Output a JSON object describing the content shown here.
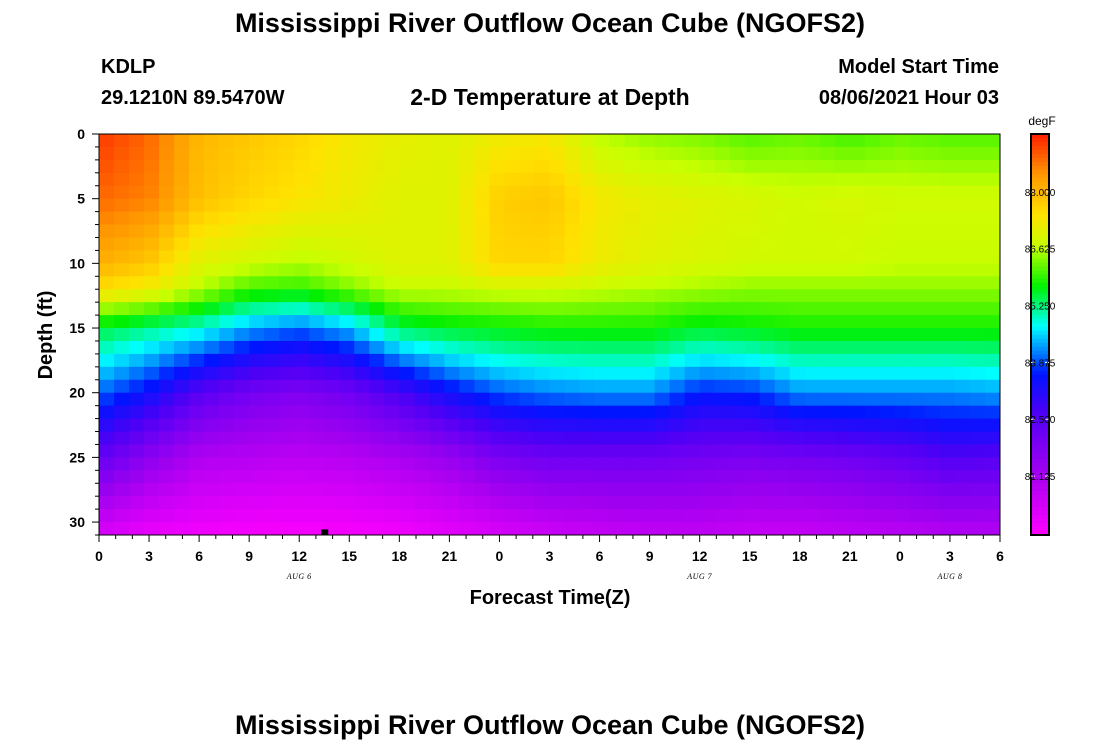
{
  "page": {
    "title_top": "Mississippi River Outflow Ocean Cube (NGOFS2)",
    "title_bottom": "Mississippi River Outflow Ocean Cube (NGOFS2)",
    "station_id": "KDLP",
    "station_coords": "29.1210N  89.5470W",
    "subtitle": "2-D Temperature at Depth",
    "model_start_label": "Model Start Time",
    "model_start_value": "08/06/2021 Hour 03"
  },
  "chart_data": {
    "type": "heatmap",
    "title": "2-D Temperature at Depth",
    "xlabel": "Forecast Time(Z)",
    "ylabel": "Depth (ft)",
    "x_range_hours": [
      0,
      54
    ],
    "y_range_ft": [
      0,
      31
    ],
    "x_tick_labels": [
      "0",
      "3",
      "6",
      "9",
      "12",
      "15",
      "18",
      "21",
      "0",
      "3",
      "6",
      "9",
      "12",
      "15",
      "18",
      "21",
      "0",
      "3",
      "6"
    ],
    "y_ticks": [
      0,
      5,
      10,
      15,
      20,
      25,
      30
    ],
    "date_labels": [
      {
        "label": "AUG 6",
        "hour": 12
      },
      {
        "label": "AUG 7",
        "hour": 36
      },
      {
        "label": "AUG 8",
        "hour": 51
      }
    ],
    "colorbar": {
      "units": "degF",
      "range": [
        79.7,
        89.4
      ],
      "tick_values": [
        88.0,
        86.625,
        85.25,
        83.875,
        82.5,
        81.125
      ],
      "tick_labels": [
        "88.000",
        "86.625",
        "85.250",
        "83.875",
        "82.500",
        "81.125"
      ]
    },
    "marker": {
      "hour": 13.5,
      "depth_ft": 30.8
    },
    "hours": [
      0,
      3,
      6,
      9,
      12,
      15,
      18,
      21,
      24,
      27,
      30,
      33,
      36,
      39,
      42,
      45,
      48,
      51,
      54
    ],
    "depths_ft": [
      0,
      5,
      10,
      12,
      15,
      20,
      25,
      31
    ],
    "temperature_degF": [
      [
        89.2,
        88.8,
        88.0,
        87.8,
        87.6,
        87.3,
        87.1,
        87.0,
        87.2,
        87.3,
        86.6,
        86.4,
        86.3,
        86.1,
        86.2,
        86.0,
        86.2,
        86.1,
        86.1
      ],
      [
        88.8,
        88.6,
        87.9,
        87.6,
        87.4,
        87.2,
        87.0,
        87.0,
        87.7,
        87.8,
        87.3,
        87.1,
        87.0,
        86.9,
        86.8,
        86.9,
        86.8,
        86.8,
        86.8
      ],
      [
        88.1,
        87.8,
        87.0,
        86.8,
        86.6,
        86.8,
        87.0,
        87.0,
        87.6,
        87.6,
        87.2,
        87.0,
        86.9,
        86.8,
        86.8,
        86.8,
        86.7,
        86.7,
        86.7
      ],
      [
        87.5,
        87.2,
        86.6,
        86.0,
        85.9,
        86.3,
        86.7,
        86.7,
        86.8,
        86.8,
        86.7,
        86.6,
        86.5,
        86.4,
        86.4,
        86.4,
        86.4,
        86.4,
        86.4
      ],
      [
        85.5,
        85.2,
        84.9,
        84.3,
        84.0,
        84.4,
        85.4,
        85.6,
        85.7,
        85.8,
        85.8,
        85.8,
        85.6,
        85.7,
        85.8,
        85.8,
        85.8,
        85.8,
        85.8
      ],
      [
        84.0,
        83.4,
        82.5,
        82.0,
        81.8,
        82.1,
        82.7,
        83.4,
        83.9,
        84.1,
        84.2,
        84.2,
        83.6,
        83.7,
        84.2,
        84.2,
        84.2,
        84.2,
        84.3
      ],
      [
        82.3,
        81.6,
        81.0,
        80.9,
        80.8,
        80.9,
        81.1,
        81.4,
        81.9,
        82.1,
        82.1,
        82.1,
        82.0,
        81.9,
        82.0,
        82.1,
        82.3,
        82.6,
        82.5
      ],
      [
        80.3,
        80.0,
        79.9,
        79.8,
        79.8,
        79.8,
        79.9,
        80.1,
        80.3,
        80.5,
        80.6,
        80.7,
        80.7,
        80.6,
        80.6,
        80.7,
        80.8,
        80.9,
        80.9
      ]
    ]
  }
}
